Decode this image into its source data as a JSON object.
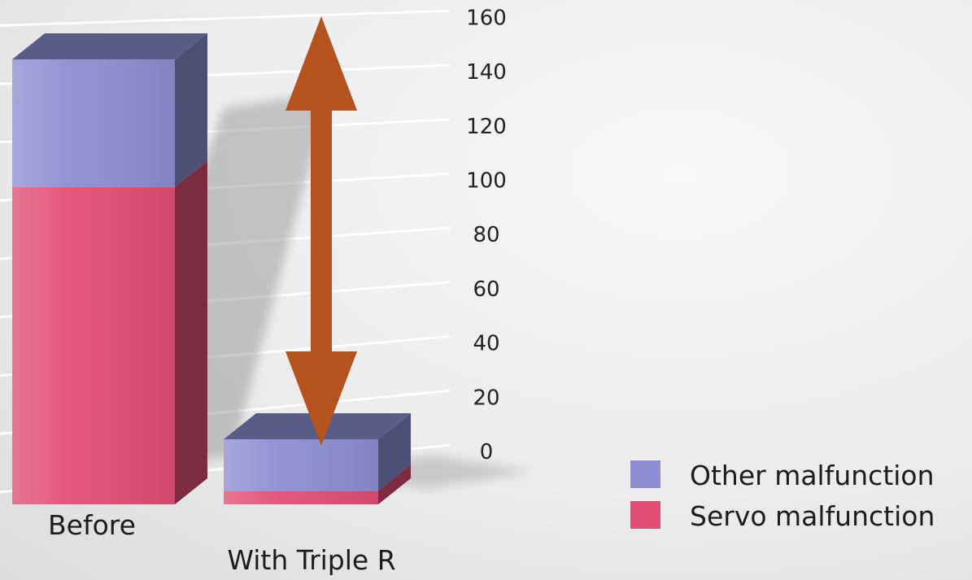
{
  "chart_data": {
    "type": "bar",
    "stacked": true,
    "three_d": true,
    "categories": [
      "Before",
      "With Triple R"
    ],
    "series": [
      {
        "name": "Servo malfunction",
        "values": [
          117,
          5
        ],
        "color": "#e24e76"
      },
      {
        "name": "Other malfunction",
        "values": [
          47,
          19
        ],
        "color": "#8c8fd2"
      }
    ],
    "yticks": [
      0,
      20,
      40,
      60,
      80,
      100,
      120,
      140,
      160
    ],
    "ylim": [
      0,
      170
    ],
    "grid": true,
    "legend_position": "bottom-right",
    "annotation": {
      "type": "double-arrow",
      "color": "#b5531f",
      "from_category": "With Triple R",
      "from_value": 0,
      "to_value": 160
    },
    "title": "",
    "xlabel": "",
    "ylabel": ""
  }
}
